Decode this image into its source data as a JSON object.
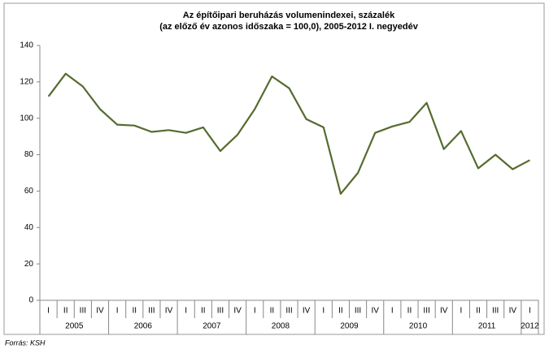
{
  "chart_data": {
    "type": "line",
    "title": "Az építőipari beruházás volumenindexei, százalék",
    "subtitle": "(az előző év azonos időszaka = 100,0), 2005-2012 I. negyedév",
    "source": "Forrás: KSH",
    "categories": [
      "I",
      "II",
      "III",
      "IV",
      "I",
      "II",
      "III",
      "IV",
      "I",
      "II",
      "III",
      "IV",
      "I",
      "II",
      "III",
      "IV",
      "I",
      "II",
      "III",
      "IV",
      "I",
      "II",
      "III",
      "IV",
      "I",
      "II",
      "III",
      "IV",
      "I"
    ],
    "groups": [
      "2005",
      "2006",
      "2007",
      "2008",
      "2009",
      "2010",
      "2011",
      "2012"
    ],
    "series": [
      {
        "name": null,
        "color": "#556b2f",
        "values": [
          112,
          124.5,
          117.5,
          105,
          96.5,
          96,
          92.5,
          93.5,
          92,
          95,
          82,
          91,
          105,
          123,
          116.5,
          99.5,
          95,
          58.5,
          70,
          92,
          95.5,
          98,
          108.5,
          83,
          93,
          72.5,
          80,
          72,
          77
        ]
      }
    ],
    "ylim": [
      0,
      140
    ],
    "yticks": [
      0,
      20,
      40,
      60,
      80,
      100,
      120,
      140
    ],
    "grid": false
  }
}
